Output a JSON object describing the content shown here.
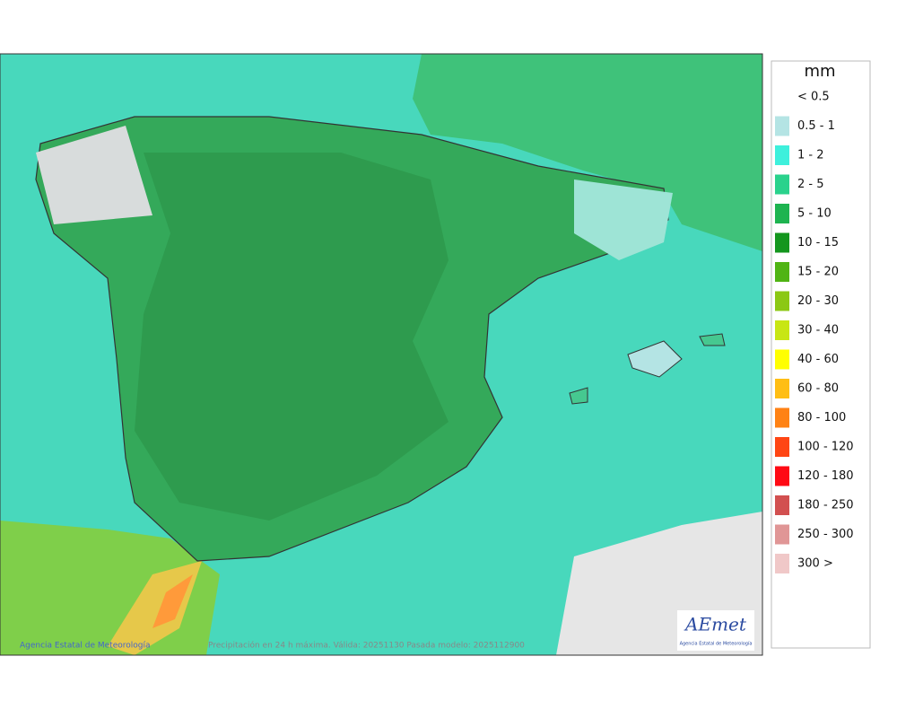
{
  "legend": {
    "title": "mm",
    "items": [
      {
        "label": "< 0.5",
        "color": "#ffffff"
      },
      {
        "label": "0.5 - 1",
        "color": "#b4e4e4"
      },
      {
        "label": "1 - 2",
        "color": "#3ef0dc"
      },
      {
        "label": "2 - 5",
        "color": "#2ad28c"
      },
      {
        "label": "5 - 10",
        "color": "#1eb450"
      },
      {
        "label": "10 - 15",
        "color": "#14961e"
      },
      {
        "label": "15 - 20",
        "color": "#50b414"
      },
      {
        "label": "20 - 30",
        "color": "#8cc814"
      },
      {
        "label": "30 - 40",
        "color": "#c8e614"
      },
      {
        "label": "40 - 60",
        "color": "#ffff00"
      },
      {
        "label": "60 - 80",
        "color": "#ffbe14"
      },
      {
        "label": "80 - 100",
        "color": "#ff8214"
      },
      {
        "label": "100 - 120",
        "color": "#ff4614"
      },
      {
        "label": "120 - 180",
        "color": "#ff0a14"
      },
      {
        "label": "180 - 250",
        "color": "#d25050"
      },
      {
        "label": "250 - 300",
        "color": "#e09696"
      },
      {
        "label": "300 >",
        "color": "#f0c8c8"
      }
    ]
  },
  "footer": {
    "credit": "Agencia Estatal de Meteorología",
    "caption": "Precipitación en 24 h máxima. Válida: 20251130 Pasada modelo: 2025112900"
  },
  "logo": {
    "name": "AEmet",
    "subtitle": "Agencia Estatal de Meteorología"
  }
}
